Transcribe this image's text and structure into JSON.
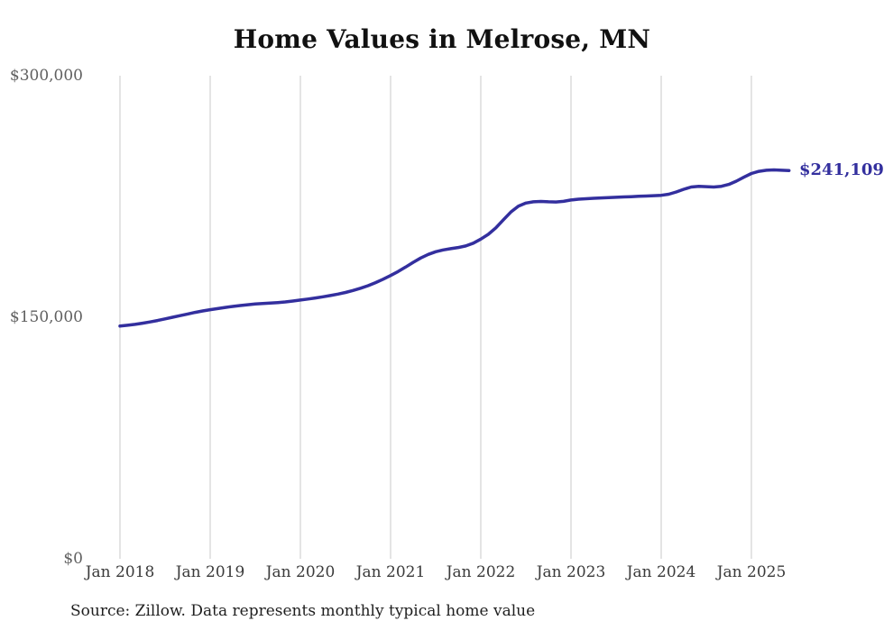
{
  "source_note": "Source: Zillow. Data represents monthly typical home value",
  "colors": {
    "line": "#332f9e",
    "end_label": "#332f9e",
    "grid": "#c9c9c9",
    "y_tick_text": "#606060",
    "x_tick_text": "#3a3a3a",
    "title_text": "#111111",
    "source_text": "#1f1f1f",
    "background": "#ffffff"
  },
  "chart_data": {
    "type": "line",
    "title": "Home Values in Melrose, MN",
    "frequency": "monthly",
    "x_start": "2018-01",
    "x_end": "2025-06",
    "values": [
      144500,
      145000,
      145600,
      146300,
      147100,
      148000,
      149000,
      150000,
      151000,
      152000,
      153000,
      153900,
      154700,
      155400,
      156100,
      156700,
      157300,
      157800,
      158200,
      158500,
      158800,
      159100,
      159500,
      160100,
      160700,
      161300,
      162000,
      162700,
      163500,
      164400,
      165400,
      166600,
      168000,
      169600,
      171500,
      173600,
      175900,
      178400,
      181200,
      184100,
      186800,
      189000,
      190700,
      191800,
      192600,
      193300,
      194300,
      196000,
      198500,
      201500,
      205500,
      210500,
      215300,
      219000,
      220900,
      221700,
      221900,
      221700,
      221600,
      222000,
      222800,
      223300,
      223600,
      223900,
      224100,
      224300,
      224500,
      224700,
      224900,
      225100,
      225300,
      225500,
      225700,
      226400,
      227800,
      229500,
      230900,
      231300,
      231100,
      230900,
      231300,
      232500,
      234500,
      237000,
      239300,
      240600,
      241300,
      241500,
      241300,
      241109
    ],
    "last_value": 241109,
    "end_annotation": "$241,109",
    "x_tick_labels": [
      "Jan 2018",
      "Jan 2019",
      "Jan 2020",
      "Jan 2021",
      "Jan 2022",
      "Jan 2023",
      "Jan 2024",
      "Jan 2025"
    ],
    "y_ticks": [
      {
        "value": 0,
        "label": "$0"
      },
      {
        "value": 150000,
        "label": "$150,000"
      },
      {
        "value": 300000,
        "label": "$300,000"
      }
    ],
    "ylim": [
      0,
      300000
    ],
    "grid": "vertical-only",
    "legend": "none"
  }
}
